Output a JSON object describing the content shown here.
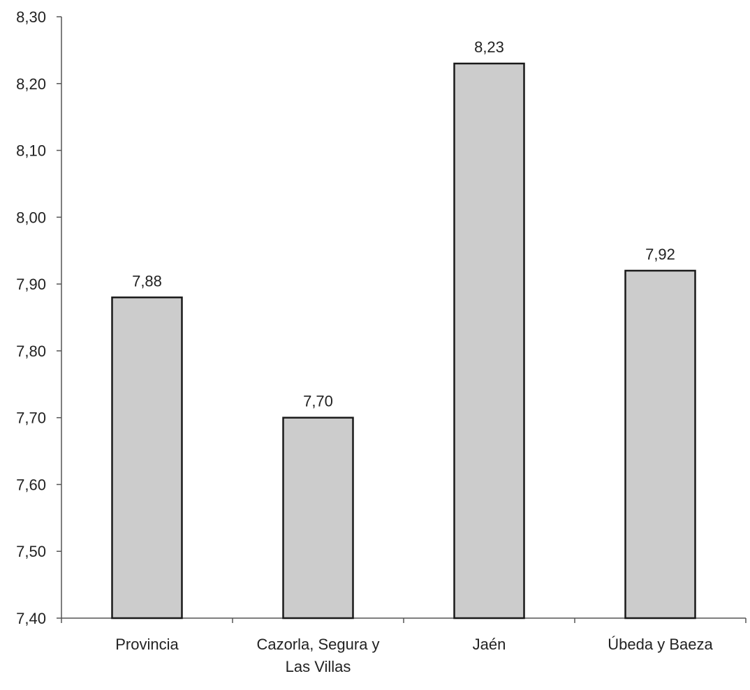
{
  "chart_data": {
    "type": "bar",
    "categories": [
      [
        "Provincia"
      ],
      [
        "Cazorla, Segura y",
        "Las Villas"
      ],
      [
        "Jaén"
      ],
      [
        "Úbeda y Baeza"
      ]
    ],
    "values": [
      7.88,
      7.7,
      8.23,
      7.92
    ],
    "data_labels": [
      "7,88",
      "7,70",
      "8,23",
      "7,92"
    ],
    "ylim": [
      7.4,
      8.3
    ],
    "yticks": [
      7.4,
      7.5,
      7.6,
      7.7,
      7.8,
      7.9,
      8.0,
      8.1,
      8.2,
      8.3
    ],
    "ytick_labels": [
      "7,40",
      "7,50",
      "7,60",
      "7,70",
      "7,80",
      "7,90",
      "8,00",
      "8,10",
      "8,20",
      "8,30"
    ],
    "title": "",
    "xlabel": "",
    "ylabel": "",
    "grid": false,
    "legend": "none",
    "colors": {
      "bar_fill": "#cccccc",
      "bar_stroke": "#1a1a1a",
      "axis": "#555555",
      "text": "#222222"
    }
  }
}
